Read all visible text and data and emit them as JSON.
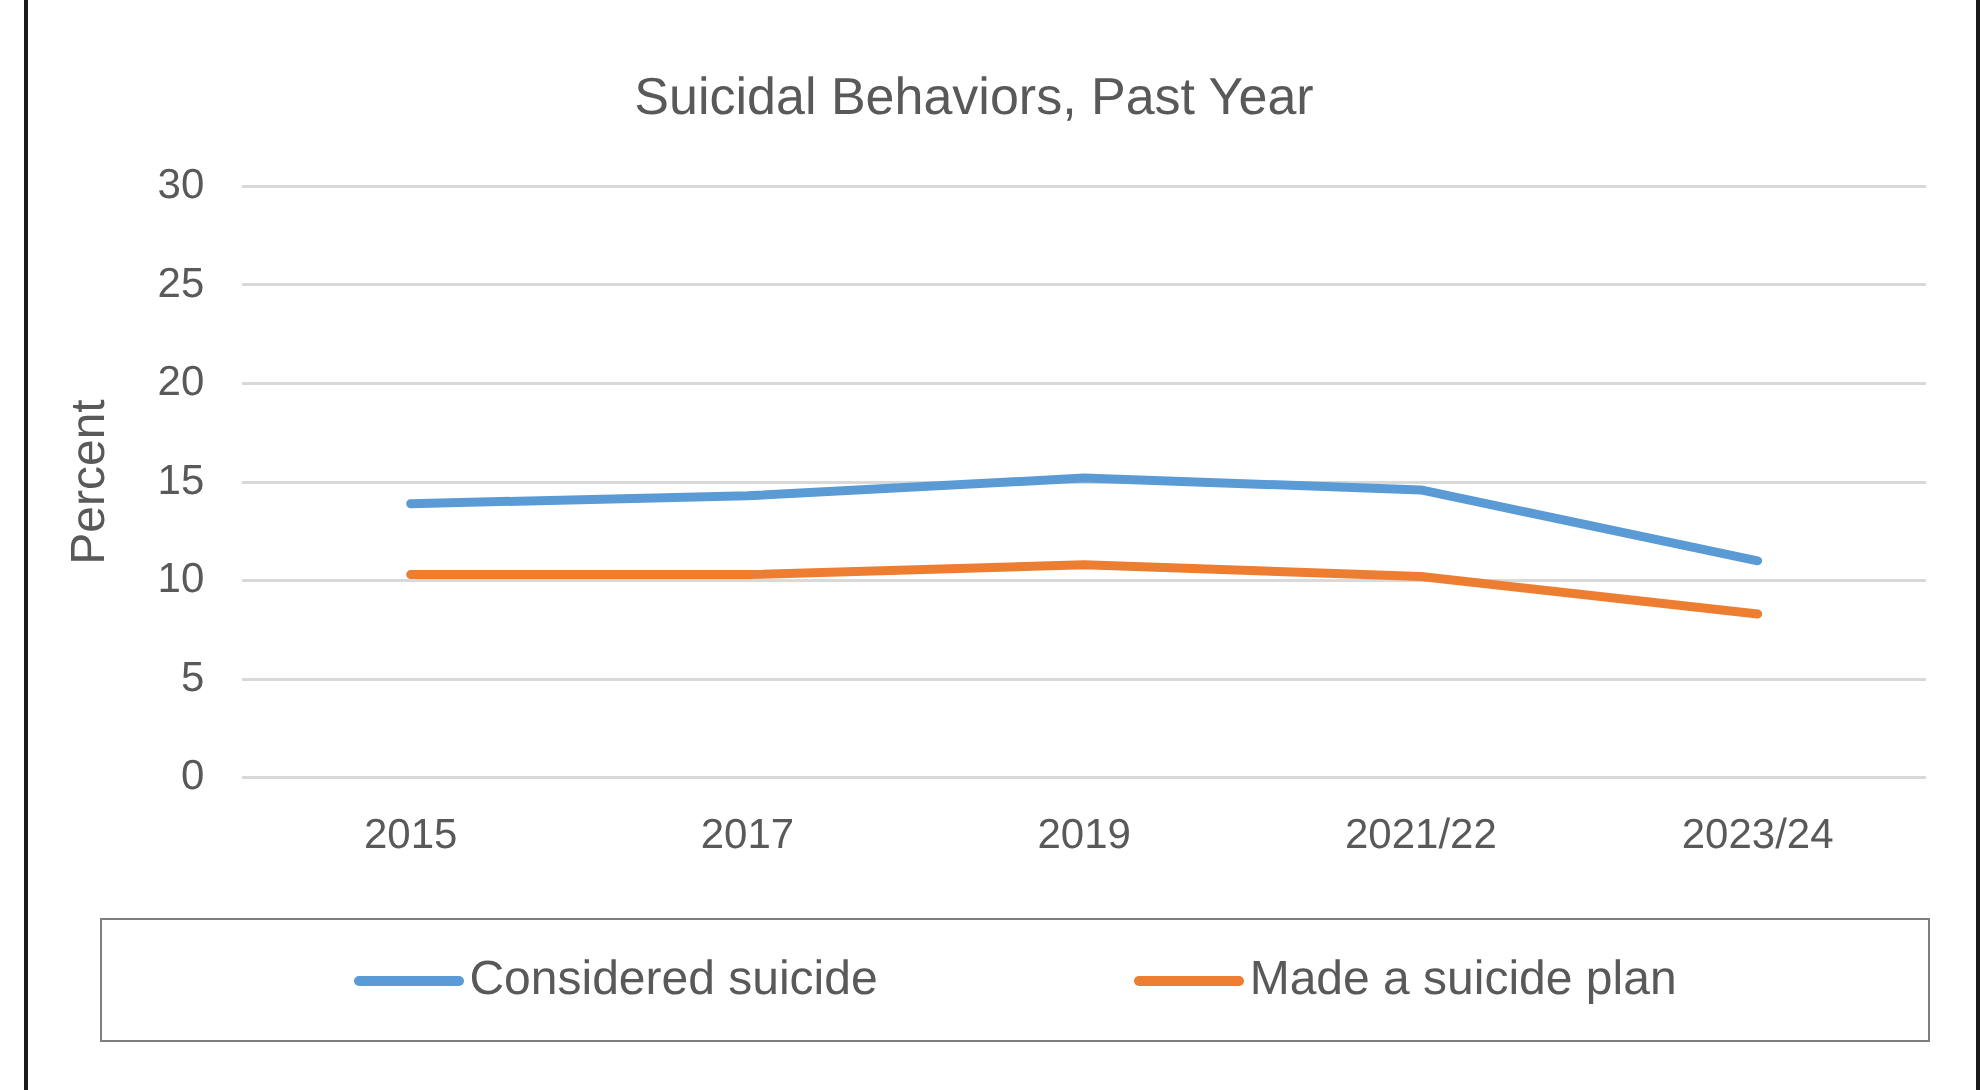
{
  "chart_data": {
    "type": "line",
    "title": "Suicidal Behaviors, Past Year",
    "ylabel": "Percent",
    "categories": [
      "2015",
      "2017",
      "2019",
      "2021/22",
      "2023/24"
    ],
    "series": [
      {
        "name": "Considered suicide",
        "color": "#5b9bd5",
        "values": [
          13.9,
          14.3,
          15.2,
          14.6,
          11.0
        ]
      },
      {
        "name": "Made a suicide plan",
        "color": "#ed7d31",
        "values": [
          10.3,
          10.3,
          10.8,
          10.2,
          8.3
        ]
      }
    ],
    "ylim": [
      0,
      30
    ],
    "yticks": [
      0,
      5,
      10,
      15,
      20,
      25,
      30
    ],
    "grid": "y",
    "legend": "bottom"
  }
}
